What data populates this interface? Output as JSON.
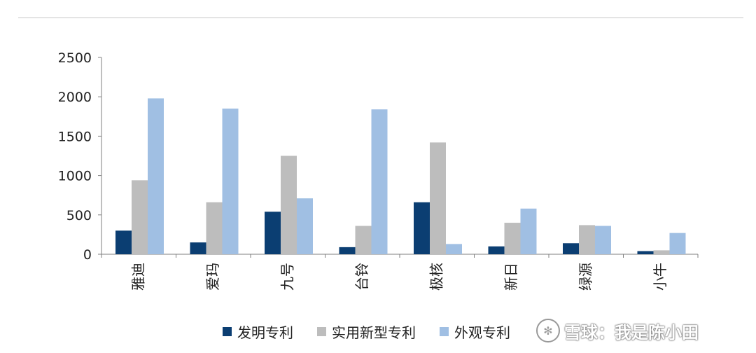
{
  "chart_data": {
    "type": "bar",
    "title": "",
    "xlabel": "",
    "ylabel": "",
    "categories": [
      "雅迪",
      "爱玛",
      "九号",
      "台铃",
      "极核",
      "新日",
      "绿源",
      "小牛"
    ],
    "series": [
      {
        "name": "发明专利",
        "color": "#0b3e72",
        "values": [
          300,
          150,
          540,
          90,
          660,
          100,
          140,
          40
        ]
      },
      {
        "name": "实用新型专利",
        "color": "#bdbdbd",
        "values": [
          940,
          660,
          1250,
          360,
          1420,
          400,
          370,
          50
        ]
      },
      {
        "name": "外观专利",
        "color": "#a0bfe3",
        "values": [
          1980,
          1850,
          710,
          1840,
          130,
          580,
          360,
          270
        ]
      }
    ],
    "ylim": [
      0,
      2500
    ],
    "yticks": [
      "0",
      "500",
      "1000",
      "1500",
      "2000",
      "2500"
    ],
    "grid": false,
    "legend_position": "bottom"
  },
  "watermark": {
    "logo_icon": "snowball-logo-icon",
    "text": "雪球：我是陈小田"
  }
}
